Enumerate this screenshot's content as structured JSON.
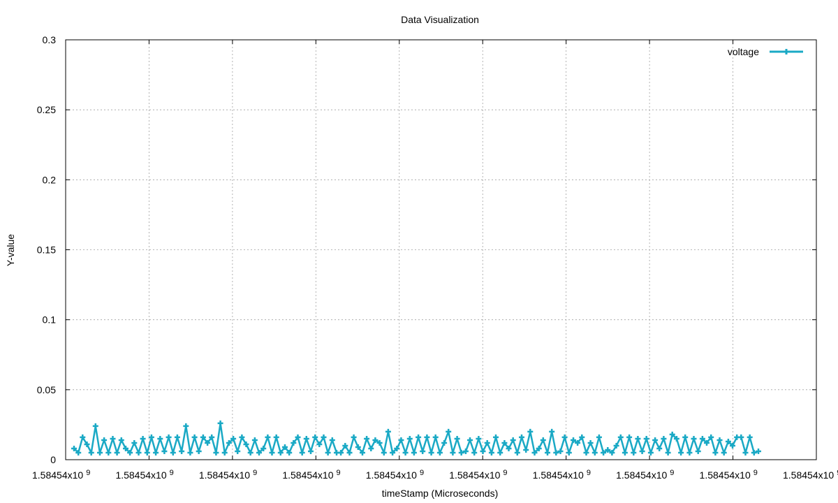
{
  "chart_data": {
    "type": "line",
    "title": "Data Visualization",
    "xlabel": "timeStamp (Microseconds)",
    "ylabel": "Y-value",
    "ylim": [
      0,
      0.3
    ],
    "yticks": [
      "0",
      "0.05",
      "0.1",
      "0.15",
      "0.2",
      "0.25",
      "0.3"
    ],
    "xticks": [
      "1.58454x10",
      "1.58454x10",
      "1.58454x10",
      "1.58454x10",
      "1.58454x10",
      "1.58454x10",
      "1.58454x10",
      "1.58454x10",
      "1.58454x10",
      "1.58454x10"
    ],
    "xtick_exponent": "9",
    "grid": true,
    "legend_position": "top-right",
    "colors": {
      "series": "#1aa9c5",
      "frame": "#000000",
      "grid": "#a0a0a0"
    },
    "series": [
      {
        "name": "voltage",
        "values": [
          0.008,
          0.005,
          0.016,
          0.011,
          0.005,
          0.024,
          0.005,
          0.014,
          0.005,
          0.015,
          0.005,
          0.014,
          0.008,
          0.005,
          0.012,
          0.005,
          0.015,
          0.005,
          0.016,
          0.005,
          0.015,
          0.006,
          0.016,
          0.005,
          0.016,
          0.006,
          0.024,
          0.005,
          0.016,
          0.006,
          0.016,
          0.012,
          0.016,
          0.005,
          0.026,
          0.005,
          0.012,
          0.015,
          0.006,
          0.016,
          0.011,
          0.005,
          0.014,
          0.005,
          0.008,
          0.016,
          0.005,
          0.016,
          0.005,
          0.009,
          0.005,
          0.012,
          0.016,
          0.005,
          0.015,
          0.006,
          0.016,
          0.011,
          0.016,
          0.005,
          0.014,
          0.005,
          0.005,
          0.01,
          0.005,
          0.016,
          0.009,
          0.005,
          0.015,
          0.008,
          0.014,
          0.012,
          0.005,
          0.02,
          0.005,
          0.008,
          0.014,
          0.005,
          0.015,
          0.005,
          0.016,
          0.006,
          0.016,
          0.005,
          0.016,
          0.005,
          0.012,
          0.02,
          0.005,
          0.015,
          0.005,
          0.006,
          0.014,
          0.005,
          0.015,
          0.006,
          0.012,
          0.005,
          0.016,
          0.005,
          0.012,
          0.008,
          0.014,
          0.005,
          0.016,
          0.007,
          0.02,
          0.005,
          0.008,
          0.014,
          0.005,
          0.02,
          0.005,
          0.006,
          0.016,
          0.005,
          0.014,
          0.012,
          0.016,
          0.005,
          0.012,
          0.005,
          0.016,
          0.005,
          0.007,
          0.005,
          0.01,
          0.016,
          0.005,
          0.016,
          0.005,
          0.015,
          0.006,
          0.015,
          0.005,
          0.014,
          0.008,
          0.015,
          0.005,
          0.018,
          0.015,
          0.005,
          0.016,
          0.005,
          0.015,
          0.006,
          0.015,
          0.012,
          0.016,
          0.005,
          0.014,
          0.005,
          0.013,
          0.01,
          0.016,
          0.016,
          0.005,
          0.016,
          0.005,
          0.006
        ]
      }
    ]
  }
}
